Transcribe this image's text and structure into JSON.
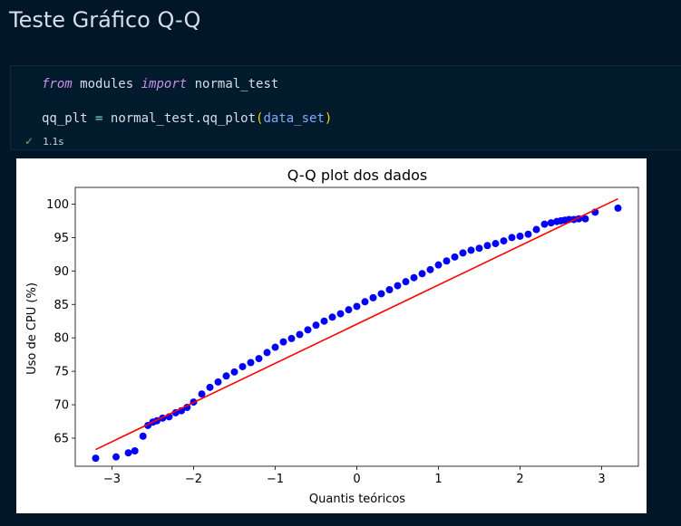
{
  "heading": "Teste Gráfico Q-Q",
  "code": {
    "line1": {
      "kw_from": "from",
      "module": "modules",
      "kw_import": "import",
      "name": "normal_test"
    },
    "line2": {
      "var": "qq_plt",
      "eq": "=",
      "call": "normal_test.qq_plot",
      "open": "(",
      "arg": "data_set",
      "close": ")"
    },
    "exec_time": "1.1s"
  },
  "colors": {
    "points": "#0000ff",
    "fit_line": "#ff0000",
    "background": "#011627"
  },
  "chart_data": {
    "type": "scatter",
    "title": "Q-Q plot dos dados",
    "xlabel": "Quantis teóricos",
    "ylabel": "Uso de CPU (%)",
    "xlim": [
      -3.45,
      3.45
    ],
    "ylim": [
      60.8,
      102.5
    ],
    "xticks": [
      -3,
      -2,
      -1,
      0,
      1,
      2,
      3
    ],
    "xtick_labels": [
      "−3",
      "−2",
      "−1",
      "0",
      "1",
      "2",
      "3"
    ],
    "yticks": [
      65,
      70,
      75,
      80,
      85,
      90,
      95,
      100
    ],
    "ytick_labels": [
      "65",
      "70",
      "75",
      "80",
      "85",
      "90",
      "95",
      "100"
    ],
    "fit_line": {
      "x": [
        -3.2,
        3.2
      ],
      "y": [
        63.3,
        100.8
      ]
    },
    "points": {
      "x": [
        -3.2,
        -2.95,
        -2.8,
        -2.72,
        -2.62,
        -2.56,
        -2.5,
        -2.45,
        -2.38,
        -2.3,
        -2.22,
        -2.15,
        -2.08,
        -2.0,
        -1.9,
        -1.8,
        -1.7,
        -1.6,
        -1.5,
        -1.4,
        -1.3,
        -1.2,
        -1.1,
        -1.0,
        -0.9,
        -0.8,
        -0.7,
        -0.6,
        -0.5,
        -0.4,
        -0.3,
        -0.2,
        -0.1,
        0.0,
        0.1,
        0.2,
        0.3,
        0.4,
        0.5,
        0.6,
        0.7,
        0.8,
        0.9,
        1.0,
        1.1,
        1.2,
        1.3,
        1.4,
        1.5,
        1.6,
        1.7,
        1.8,
        1.9,
        2.0,
        2.1,
        2.2,
        2.3,
        2.38,
        2.45,
        2.5,
        2.55,
        2.6,
        2.66,
        2.72,
        2.8,
        2.92,
        3.2
      ],
      "y": [
        62.0,
        62.2,
        62.8,
        63.1,
        65.3,
        66.9,
        67.4,
        67.6,
        68.0,
        68.2,
        68.8,
        69.1,
        69.6,
        70.4,
        71.6,
        72.6,
        73.4,
        74.3,
        74.9,
        75.7,
        76.3,
        76.9,
        77.8,
        78.6,
        79.4,
        79.9,
        80.5,
        81.2,
        81.9,
        82.5,
        83.1,
        83.6,
        84.2,
        84.7,
        85.4,
        86.0,
        86.6,
        87.2,
        87.8,
        88.4,
        89.0,
        89.6,
        90.2,
        90.9,
        91.5,
        92.1,
        92.7,
        93.1,
        93.4,
        93.8,
        94.1,
        94.5,
        95.0,
        95.2,
        95.5,
        96.2,
        97.0,
        97.2,
        97.4,
        97.5,
        97.6,
        97.7,
        97.7,
        97.8,
        97.8,
        98.8,
        99.4
      ]
    }
  }
}
